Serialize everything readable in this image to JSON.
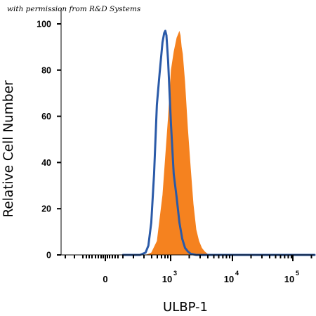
{
  "chart_data": {
    "type": "area",
    "annotation": "with permission from R&D Systems",
    "xlabel": "ULBP-1",
    "ylabel": "Relative Cell Number",
    "ylim": [
      0,
      100
    ],
    "yticks": [
      0,
      20,
      40,
      60,
      80,
      100
    ],
    "xscale": "biexponential",
    "xtick_labels": [
      {
        "base": "0",
        "exp": ""
      },
      {
        "base": "10",
        "exp": "3"
      },
      {
        "base": "10",
        "exp": "4"
      },
      {
        "base": "10",
        "exp": "5"
      }
    ],
    "grid": false,
    "series": [
      {
        "style": "filled",
        "color": "#f5821f",
        "x": [
          150,
          160,
          170,
          180,
          190,
          195,
          200,
          205,
          210,
          212,
          214,
          216,
          220,
          225,
          230,
          235,
          240,
          245,
          250,
          255,
          260,
          270,
          280
        ],
        "y": [
          0,
          1,
          6,
          26,
          60,
          80,
          88,
          94,
          97,
          95,
          90,
          87,
          75,
          55,
          38,
          22,
          11,
          6,
          3,
          1.5,
          0.5,
          0,
          0
        ]
      },
      {
        "style": "line",
        "color": "#2a5aa8",
        "x": [
          110,
          140,
          150,
          155,
          160,
          165,
          170,
          175,
          180,
          183,
          185,
          187,
          190,
          195,
          200,
          205,
          210,
          215,
          220,
          225,
          230,
          240,
          250,
          450
        ],
        "y": [
          0,
          0,
          1,
          4,
          14,
          35,
          65,
          79,
          92,
          96,
          97,
          95,
          84,
          57,
          35,
          25,
          14,
          7,
          3,
          1.5,
          0.5,
          0,
          0,
          0
        ]
      }
    ]
  }
}
